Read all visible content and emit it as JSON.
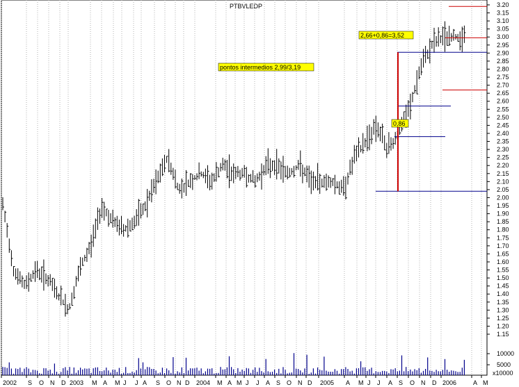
{
  "chart_data": {
    "type": "bar",
    "title": "PTBVLEDP",
    "price_axis": {
      "ylim": [
        1.1,
        3.22
      ],
      "ticks": [
        "3.20",
        "3.15",
        "3.10",
        "3.05",
        "3.00",
        "2.95",
        "2.90",
        "2.85",
        "2.80",
        "2.75",
        "2.70",
        "2.65",
        "2.60",
        "2.55",
        "2.50",
        "2.45",
        "2.40",
        "2.35",
        "2.30",
        "2.25",
        "2.20",
        "2.15",
        "2.10",
        "2.05",
        "2.00",
        "1.95",
        "1.90",
        "1.85",
        "1.80",
        "1.75",
        "1.70",
        "1.65",
        "1.60",
        "1.55",
        "1.50",
        "1.45",
        "1.40",
        "1.35",
        "1.30",
        "1.25",
        "1.20",
        "1.15"
      ]
    },
    "volume_axis": {
      "ticks": [
        "10000",
        "5000"
      ],
      "unit_label": "x10000"
    },
    "x_labels": [
      "2002",
      "S",
      "O",
      "N",
      "D",
      "2003",
      "M",
      "A",
      "M",
      "J",
      "J",
      "A",
      "S",
      "O",
      "N",
      "D",
      "2004",
      "M",
      "A",
      "M",
      "J",
      "J",
      "A",
      "S",
      "O",
      "N",
      "D",
      "2005",
      "A",
      "M",
      "J",
      "J",
      "A",
      "S",
      "O",
      "N",
      "D",
      "2006",
      "A",
      "M"
    ],
    "series": [
      {
        "x": [
          "2002-08",
          "2002-09",
          "2002-10",
          "2002-11",
          "2002-12",
          "2003-01",
          "2003-02",
          "2003-03",
          "2003-04",
          "2003-05",
          "2003-06",
          "2003-07",
          "2003-08",
          "2003-09",
          "2003-10",
          "2003-11",
          "2003-12",
          "2004-01",
          "2004-02",
          "2004-03",
          "2004-04",
          "2004-05",
          "2004-06",
          "2004-07",
          "2004-08",
          "2004-09",
          "2004-10",
          "2004-11",
          "2004-12",
          "2005-01",
          "2005-02",
          "2005-03",
          "2005-04",
          "2005-05",
          "2005-06",
          "2005-07",
          "2005-08",
          "2005-09",
          "2005-10",
          "2005-11",
          "2005-12",
          "2006-01",
          "2006-02"
        ],
        "y": [
          1.95,
          1.55,
          1.45,
          1.55,
          1.5,
          1.4,
          1.3,
          1.55,
          1.7,
          1.95,
          1.85,
          1.8,
          1.85,
          1.95,
          2.1,
          2.25,
          2.05,
          2.1,
          2.15,
          2.1,
          2.2,
          2.15,
          2.15,
          2.1,
          2.2,
          2.2,
          2.15,
          2.2,
          2.1,
          2.1,
          2.1,
          2.05,
          2.25,
          2.35,
          2.45,
          2.3,
          2.4,
          2.55,
          2.8,
          2.95,
          3.0,
          3.0,
          3.0
        ]
      }
    ],
    "annotations": {
      "label_top": "2,66+0,86=3,52",
      "label_mid": "pontos intermedios 2,99/3,19",
      "label_small": "0,86"
    },
    "colors": {
      "bars": "#000000",
      "grid": "#b0b0b0",
      "blue_lines": "#00008b",
      "red_lines": "#cc0000",
      "label_bg": "#ffff00"
    }
  }
}
